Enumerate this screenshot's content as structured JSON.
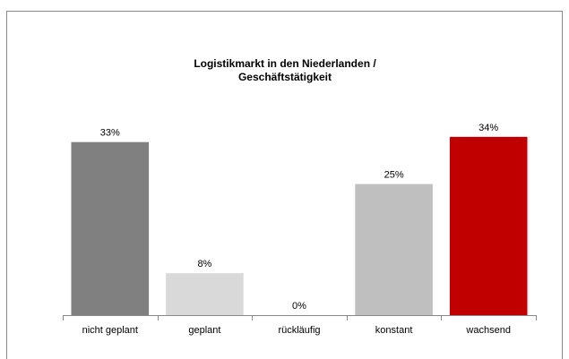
{
  "chart_data": {
    "type": "bar",
    "title": [
      "Logistikmarkt in den Niederlanden /",
      "Geschäftstätigkeit"
    ],
    "categories": [
      "nicht geplant",
      "geplant",
      "rückläufig",
      "konstant",
      "wachsend"
    ],
    "values": [
      33,
      8,
      0,
      25,
      34
    ],
    "value_labels": [
      "33%",
      "8%",
      "0%",
      "25%",
      "34%"
    ],
    "colors": [
      "#808080",
      "#d9d9d9",
      "#a6a6a6",
      "#bfbfbf",
      "#c00000"
    ],
    "ylim": [
      0,
      35
    ]
  }
}
